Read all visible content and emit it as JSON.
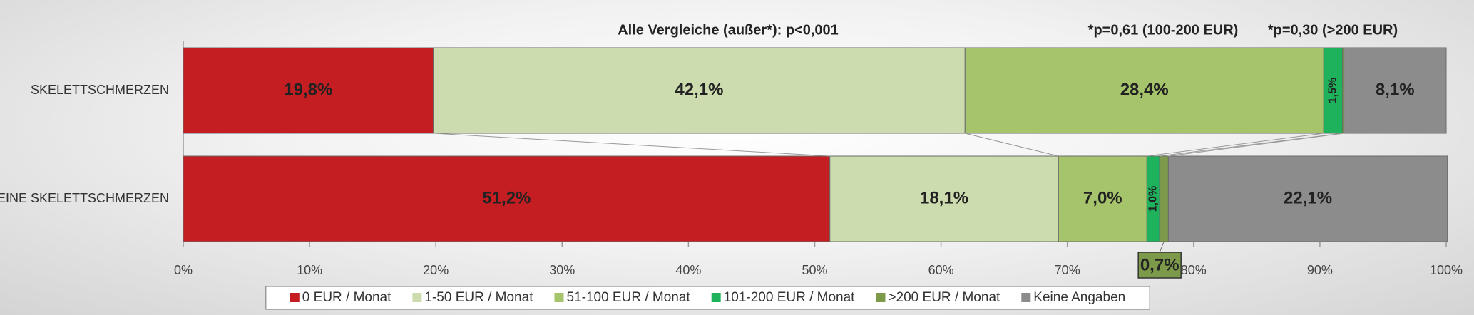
{
  "chart_data": {
    "type": "stacked_bar_horizontal",
    "annotations": [
      "Alle Vergleiche (außer*): p<0,001",
      "*p=0,61 (100-200 EUR)",
      "*p=0,30 (>200 EUR)"
    ],
    "categories": [
      "SKELETTSCHMERZEN",
      "KEINE SKELETTSCHMERZEN"
    ],
    "series": [
      {
        "name": "0 EUR / Monat",
        "color": "#c41e22",
        "label_color": "#ffff00",
        "values": [
          19.8,
          51.2
        ],
        "value_labels": [
          "19,8%",
          "51,2%"
        ]
      },
      {
        "name": "1-50 EUR / Monat",
        "color": "#cddcae",
        "label_color": "#000000",
        "values": [
          42.1,
          18.1
        ],
        "value_labels": [
          "42,1%",
          "18,1%"
        ]
      },
      {
        "name": "51-100 EUR / Monat",
        "color": "#a6c46c",
        "label_color": "#000000",
        "values": [
          28.4,
          7.0
        ],
        "value_labels": [
          "28,4%",
          "7,0%"
        ]
      },
      {
        "name": "101-200 EUR / Monat",
        "color": "#1eb25c",
        "label_color": "#000000",
        "values": [
          1.5,
          1.0
        ],
        "value_labels": [
          "1,5%",
          "1,0%"
        ]
      },
      {
        "name": ">200 EUR / Monat",
        "color": "#7d9a4a",
        "label_color": "#000000",
        "values": [
          0.1,
          0.7
        ],
        "value_labels": [
          null,
          "0,7%"
        ]
      },
      {
        "name": "Keine Angaben",
        "color": "#8c8c8c",
        "label_color": "#ffffff",
        "values": [
          8.1,
          22.1
        ],
        "value_labels": [
          "8,1%",
          "22,1%"
        ]
      }
    ],
    "xlim": [
      0,
      100
    ],
    "xticks": [
      {
        "value": 0,
        "label": "0%"
      },
      {
        "value": 10,
        "label": "10%"
      },
      {
        "value": 20,
        "label": "20%"
      },
      {
        "value": 30,
        "label": "30%"
      },
      {
        "value": 40,
        "label": "40%"
      },
      {
        "value": 50,
        "label": "50%"
      },
      {
        "value": 60,
        "label": "60%"
      },
      {
        "value": 70,
        "label": "70%"
      },
      {
        "value": 80,
        "label": "80%"
      },
      {
        "value": 90,
        "label": "90%"
      },
      {
        "value": 100,
        "label": "100%"
      }
    ],
    "legend": "bottom"
  }
}
